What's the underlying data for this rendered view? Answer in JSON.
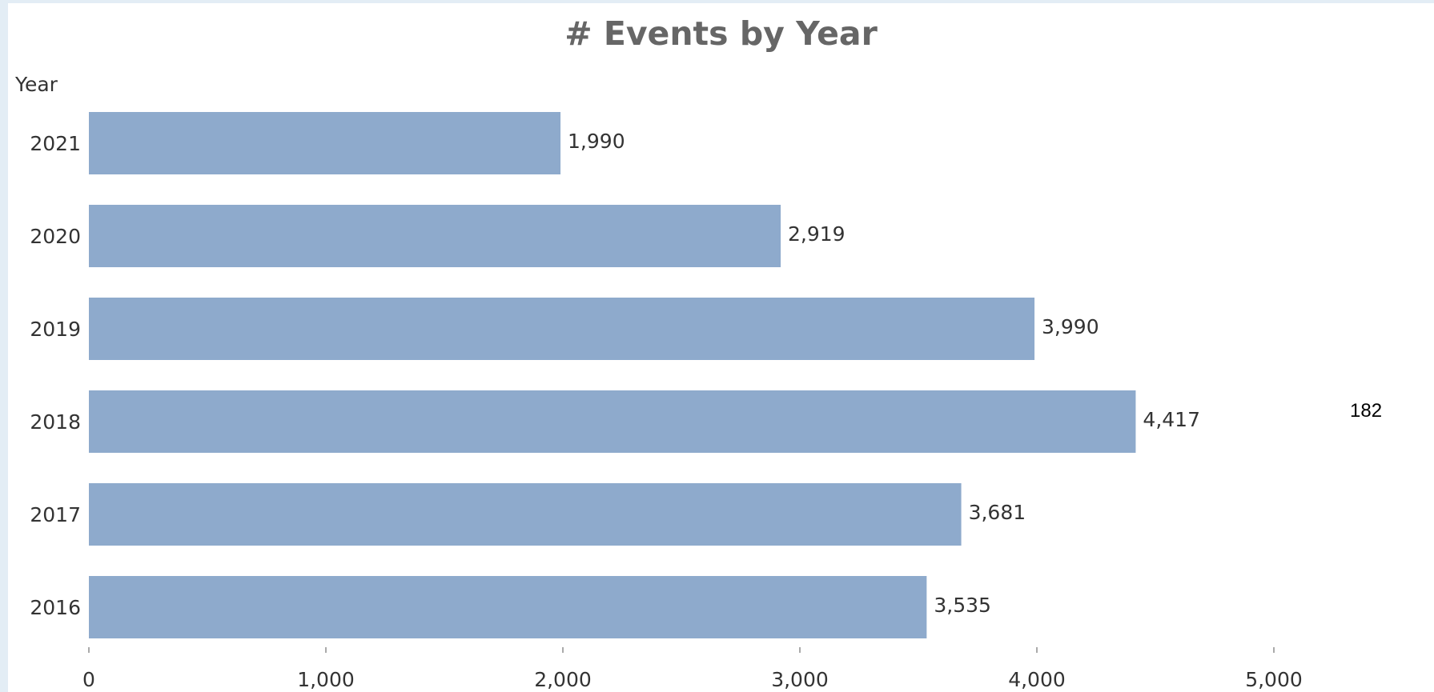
{
  "chart_data": {
    "type": "bar",
    "orientation": "horizontal",
    "title": "# Events by Year",
    "ylabel": "Year",
    "xlabel": "",
    "categories": [
      "2021",
      "2020",
      "2019",
      "2018",
      "2017",
      "2016"
    ],
    "values": [
      1990,
      2919,
      3990,
      4417,
      3681,
      3535
    ],
    "value_labels": [
      "1,990",
      "2,919",
      "3,990",
      "4,417",
      "3,681",
      "3,535"
    ],
    "xlim": [
      0,
      5000
    ],
    "x_ticks": [
      0,
      1000,
      2000,
      3000,
      4000,
      5000
    ],
    "x_tick_labels": [
      "0",
      "1,000",
      "2,000",
      "3,000",
      "4,000",
      "5,000"
    ],
    "grid": false,
    "legend": "none",
    "bar_color": "#8eaacc"
  },
  "side_note": "182"
}
